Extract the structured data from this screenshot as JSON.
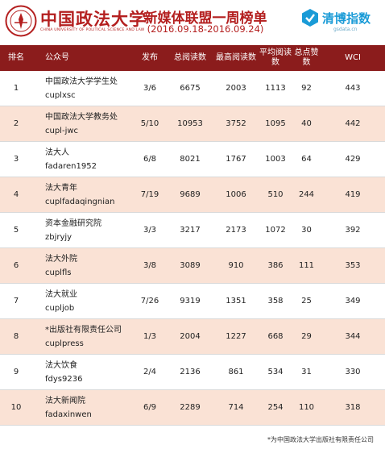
{
  "header": {
    "university_name": "中国政法大学",
    "university_name_en": "CHINA UNIVERSITY OF POLITICAL SCIENCE AND LAW",
    "title": "新媒体联盟一周榜单",
    "date_range": "(2016.09.18-2016.09.24)",
    "brand_name": "清博指数",
    "brand_sub": "gsdata.cn",
    "brand_color": "#1a9bd7",
    "accent_color": "#8b1c1c"
  },
  "table": {
    "columns": {
      "rank": "排名",
      "account": "公众号",
      "published": "发布",
      "total_reads": "总阅读数",
      "max_reads": "最高阅读数",
      "avg_reads": "平均阅读数",
      "likes": "总点赞数",
      "wci": "WCI"
    },
    "rows": [
      {
        "rank": "1",
        "name": "中国政法大学学生处",
        "id": "cuplxsc",
        "published": "3/6",
        "total_reads": "6675",
        "max_reads": "2003",
        "avg_reads": "1113",
        "likes": "92",
        "wci": "443"
      },
      {
        "rank": "2",
        "name": "中国政法大学教务处",
        "id": "cupl-jwc",
        "published": "5/10",
        "total_reads": "10953",
        "max_reads": "3752",
        "avg_reads": "1095",
        "likes": "40",
        "wci": "442"
      },
      {
        "rank": "3",
        "name": "法大人",
        "id": "fadaren1952",
        "published": "6/8",
        "total_reads": "8021",
        "max_reads": "1767",
        "avg_reads": "1003",
        "likes": "64",
        "wci": "429"
      },
      {
        "rank": "4",
        "name": "法大青年",
        "id": "cuplfadaqingnian",
        "published": "7/19",
        "total_reads": "9689",
        "max_reads": "1006",
        "avg_reads": "510",
        "likes": "244",
        "wci": "419"
      },
      {
        "rank": "5",
        "name": "资本金融研究院",
        "id": "zbjryjy",
        "published": "3/3",
        "total_reads": "3217",
        "max_reads": "2173",
        "avg_reads": "1072",
        "likes": "30",
        "wci": "392"
      },
      {
        "rank": "6",
        "name": "法大外院",
        "id": "cuplfls",
        "published": "3/8",
        "total_reads": "3089",
        "max_reads": "910",
        "avg_reads": "386",
        "likes": "111",
        "wci": "353"
      },
      {
        "rank": "7",
        "name": "法大就业",
        "id": "cupljob",
        "published": "7/26",
        "total_reads": "9319",
        "max_reads": "1351",
        "avg_reads": "358",
        "likes": "25",
        "wci": "349"
      },
      {
        "rank": "8",
        "name": "*出版社有限责任公司",
        "id": "cuplpress",
        "published": "1/3",
        "total_reads": "2004",
        "max_reads": "1227",
        "avg_reads": "668",
        "likes": "29",
        "wci": "344"
      },
      {
        "rank": "9",
        "name": "法大饮食",
        "id": "fdys9236",
        "published": "2/4",
        "total_reads": "2136",
        "max_reads": "861",
        "avg_reads": "534",
        "likes": "31",
        "wci": "330"
      },
      {
        "rank": "10",
        "name": "法大新闻院",
        "id": "fadaxinwen",
        "published": "6/9",
        "total_reads": "2289",
        "max_reads": "714",
        "avg_reads": "254",
        "likes": "110",
        "wci": "318"
      }
    ]
  },
  "footnote": "*为中国政法大学出版社有限责任公司"
}
